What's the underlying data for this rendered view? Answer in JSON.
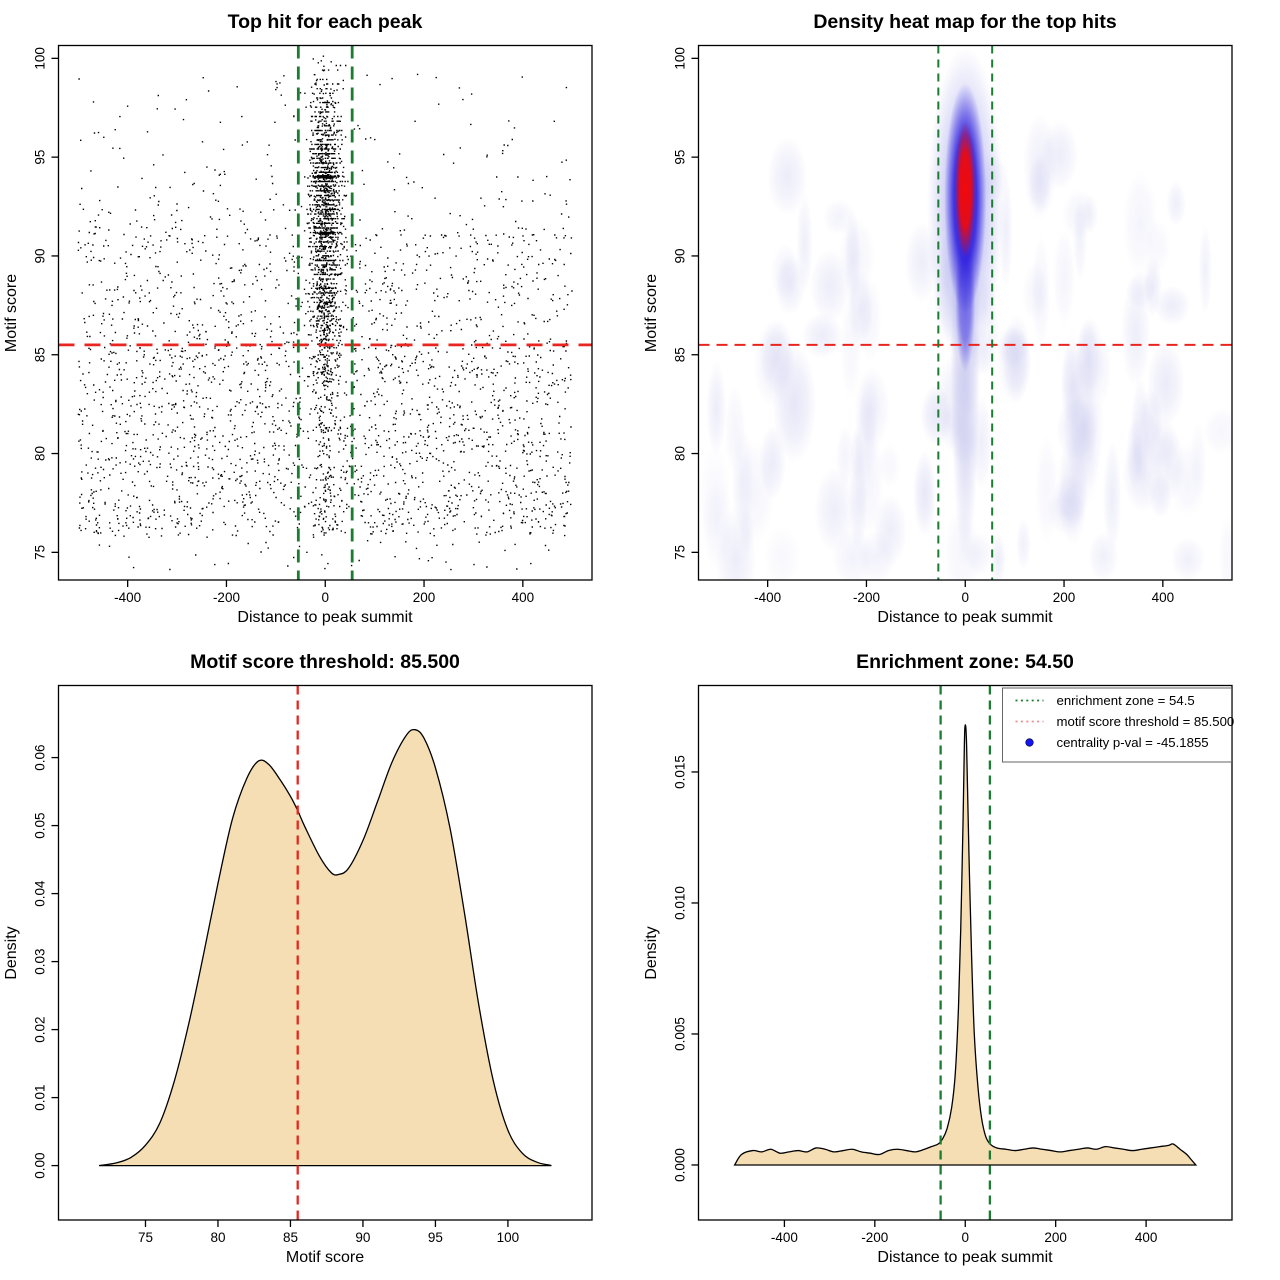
{
  "colors": {
    "background": "#ffffff",
    "frame": "#000000",
    "point_color": "#000000",
    "red_line": "#e8251f",
    "green_line": "#1b7d32",
    "wheat_fill": "#f5deb3",
    "curve_stroke": "#000000",
    "heat_core_red": "#f10a0a",
    "heat_blue": "#2617de",
    "heat_halo": "#8f8fe6",
    "heat_wisp": "#b9b9ea",
    "legend_red_sample": "#ea8c8c",
    "legend_dot_blue": "#1414ee"
  },
  "chart_data": [
    {
      "id": "top-hits-scatter",
      "type": "scatter",
      "title": "Top hit for each peak",
      "xlabel": "Distance to peak summit",
      "ylabel": "Motif score",
      "xlim": [
        -540,
        540
      ],
      "ylim": [
        73.6,
        100.65
      ],
      "xticks": [
        -400,
        -200,
        0,
        200,
        400
      ],
      "yticks": [
        75,
        80,
        85,
        90,
        95,
        100
      ],
      "motif_score_threshold": 85.5,
      "enrichment_zone": [
        -54.5,
        54.5
      ],
      "distribution": {
        "seed": 20,
        "background": {
          "n": 2750,
          "x_range": [
            -500,
            500
          ],
          "bands": [
            {
              "weight": 0.68,
              "y_range": [
                75.8,
                85.8
              ]
            },
            {
              "weight": 0.22,
              "y_range": [
                85.8,
                91.0
              ]
            },
            {
              "weight": 0.1,
              "y_range": [
                91.0,
                99.2
              ],
              "pow": 2.0
            }
          ]
        },
        "low_tail": {
          "n": 45,
          "x_range": [
            -490,
            490
          ],
          "y_range": [
            74.1,
            75.8
          ]
        },
        "column": {
          "n": 1500,
          "x_sd": 15.5,
          "y_mean": 92.7,
          "y_sd": 3.2,
          "y_min": 85.7,
          "y_max": 100.2,
          "quant_step": 0.235,
          "quant_frac": 0.62
        },
        "column_mid": {
          "n": 270,
          "x_sd": 13,
          "y_range": [
            83.4,
            88.6
          ]
        },
        "column_low": {
          "n": 115,
          "x_sd": 10,
          "y_range": [
            76.0,
            83.4
          ]
        },
        "score_bands": [
          {
            "n": 120,
            "y": 94.0,
            "x_sd": 14
          },
          {
            "n": 85,
            "y": 91.15,
            "x_sd": 13
          }
        ]
      }
    },
    {
      "id": "top-hits-heatmap",
      "type": "heatmap",
      "title": "Density heat map for the top hits",
      "xlabel": "Distance to peak summit",
      "ylabel": "Motif score",
      "xlim": [
        -540,
        540
      ],
      "ylim": [
        73.6,
        100.65
      ],
      "xticks": [
        -400,
        -200,
        0,
        200,
        400
      ],
      "yticks": [
        75,
        80,
        85,
        90,
        95,
        100
      ],
      "motif_score_threshold": 85.5,
      "enrichment_zone": [
        -54.5,
        54.5
      ],
      "hotspot": {
        "x_center": 0,
        "score_center": 93,
        "intense_score_range": [
          88,
          97.5
        ],
        "x_halfwidth": 25
      },
      "wisps": {
        "seed": 9,
        "count": 95,
        "strong_count": 10,
        "max_score": 95
      }
    },
    {
      "id": "motif-score-density",
      "type": "area",
      "title": "Motif score threshold: 85.500",
      "xlabel": "Motif score",
      "ylabel": "Density",
      "xlim": [
        69,
        105.8
      ],
      "ylim": [
        -0.008,
        0.0706
      ],
      "xticks": [
        75,
        80,
        85,
        90,
        95,
        100
      ],
      "yticks": [
        0,
        0.01,
        0.02,
        0.03,
        0.04,
        0.05,
        0.06
      ],
      "ytick_labels": [
        "0.00",
        "0.01",
        "0.02",
        "0.03",
        "0.04",
        "0.05",
        "0.06"
      ],
      "vlines": [
        85.5
      ],
      "vline_color_key": "red_line",
      "curve": [
        [
          71.8,
          0
        ],
        [
          73,
          0.0004
        ],
        [
          74,
          0.0012
        ],
        [
          75,
          0.003
        ],
        [
          76,
          0.0063
        ],
        [
          77,
          0.0125
        ],
        [
          78,
          0.021
        ],
        [
          79,
          0.031
        ],
        [
          80,
          0.0415
        ],
        [
          81,
          0.051
        ],
        [
          82,
          0.057
        ],
        [
          82.8,
          0.0595
        ],
        [
          83.5,
          0.059
        ],
        [
          84.3,
          0.0567
        ],
        [
          85,
          0.0543
        ],
        [
          85.5,
          0.0522
        ],
        [
          86,
          0.0498
        ],
        [
          87,
          0.0455
        ],
        [
          87.8,
          0.0431
        ],
        [
          88.3,
          0.0428
        ],
        [
          89,
          0.0437
        ],
        [
          90,
          0.0478
        ],
        [
          91,
          0.0535
        ],
        [
          92,
          0.0593
        ],
        [
          93,
          0.0633
        ],
        [
          93.6,
          0.0641
        ],
        [
          94.2,
          0.0629
        ],
        [
          95,
          0.0585
        ],
        [
          96,
          0.0497
        ],
        [
          97,
          0.0372
        ],
        [
          98,
          0.0235
        ],
        [
          99,
          0.0124
        ],
        [
          100,
          0.0052
        ],
        [
          101,
          0.0018
        ],
        [
          102,
          0.0005
        ],
        [
          102.8,
          0.0001
        ],
        [
          103,
          0
        ]
      ]
    },
    {
      "id": "summit-distance-density",
      "type": "area",
      "title": "Enrichment zone: 54.50",
      "xlabel": "Distance to peak summit",
      "ylabel": "Density",
      "xlim": [
        -590,
        590
      ],
      "ylim": [
        -0.0021,
        0.0183
      ],
      "xticks": [
        -400,
        -200,
        0,
        200,
        400
      ],
      "yticks": [
        0,
        0.005,
        0.01,
        0.015
      ],
      "ytick_labels": [
        "0.000",
        "0.005",
        "0.010",
        "0.015"
      ],
      "vlines": [
        -54.5,
        54.5
      ],
      "vline_color_key": "green_line",
      "curve": [
        [
          -510,
          0
        ],
        [
          -495,
          0.0004
        ],
        [
          -470,
          0.00055
        ],
        [
          -450,
          0.0005
        ],
        [
          -430,
          0.0006
        ],
        [
          -410,
          0.00045
        ],
        [
          -390,
          0.0005
        ],
        [
          -370,
          0.00055
        ],
        [
          -350,
          0.0005
        ],
        [
          -330,
          0.00065
        ],
        [
          -310,
          0.0006
        ],
        [
          -290,
          0.0005
        ],
        [
          -270,
          0.00055
        ],
        [
          -250,
          0.0006
        ],
        [
          -230,
          0.0005
        ],
        [
          -210,
          0.00045
        ],
        [
          -190,
          0.0004
        ],
        [
          -170,
          0.00055
        ],
        [
          -150,
          0.0006
        ],
        [
          -130,
          0.00055
        ],
        [
          -110,
          0.0005
        ],
        [
          -90,
          0.0006
        ],
        [
          -75,
          0.0007
        ],
        [
          -60,
          0.0008
        ],
        [
          -50,
          0.001
        ],
        [
          -40,
          0.0014
        ],
        [
          -30,
          0.0022
        ],
        [
          -22,
          0.0035
        ],
        [
          -15,
          0.006
        ],
        [
          -10,
          0.009
        ],
        [
          -5,
          0.013
        ],
        [
          -2,
          0.016
        ],
        [
          0,
          0.0168
        ],
        [
          3,
          0.016
        ],
        [
          8,
          0.012
        ],
        [
          14,
          0.008
        ],
        [
          20,
          0.005
        ],
        [
          28,
          0.003
        ],
        [
          36,
          0.0018
        ],
        [
          45,
          0.0011
        ],
        [
          55,
          0.0008
        ],
        [
          70,
          0.00065
        ],
        [
          90,
          0.0006
        ],
        [
          110,
          0.00055
        ],
        [
          130,
          0.0006
        ],
        [
          150,
          0.00065
        ],
        [
          170,
          0.0006
        ],
        [
          190,
          0.00055
        ],
        [
          210,
          0.0005
        ],
        [
          230,
          0.00055
        ],
        [
          250,
          0.0006
        ],
        [
          270,
          0.00065
        ],
        [
          290,
          0.0006
        ],
        [
          310,
          0.0007
        ],
        [
          330,
          0.00065
        ],
        [
          350,
          0.0006
        ],
        [
          370,
          0.00055
        ],
        [
          390,
          0.0006
        ],
        [
          410,
          0.00065
        ],
        [
          430,
          0.0007
        ],
        [
          450,
          0.00075
        ],
        [
          460,
          0.0008
        ],
        [
          475,
          0.0006
        ],
        [
          490,
          0.0004
        ],
        [
          500,
          0.0002
        ],
        [
          510,
          0
        ]
      ],
      "legend": {
        "items": [
          {
            "label": "enrichment zone = 54.5",
            "sample": "dotted-green"
          },
          {
            "label": "motif score threshold = 85.500",
            "sample": "dotted-red"
          },
          {
            "label": "centrality p-val = -45.1855",
            "sample": "dot-blue"
          }
        ]
      }
    }
  ]
}
